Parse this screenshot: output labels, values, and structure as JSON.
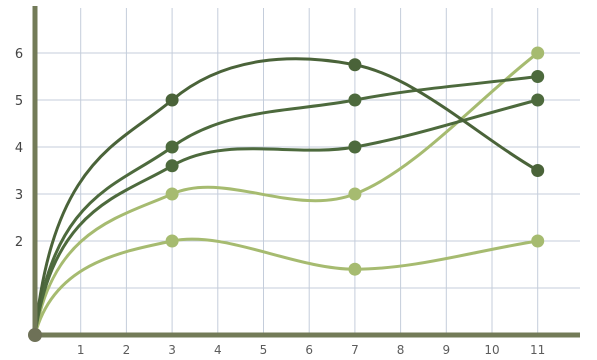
{
  "chart_data": {
    "type": "line",
    "title": "",
    "xlabel": "",
    "ylabel": "",
    "x": [
      0,
      3,
      7,
      11
    ],
    "xlim": [
      0,
      11.8
    ],
    "ylim": [
      0,
      6.9
    ],
    "xticks": [
      1,
      2,
      3,
      4,
      5,
      6,
      7,
      8,
      9,
      10,
      11
    ],
    "yticks": [
      2,
      3,
      4,
      5,
      6
    ],
    "grid": true,
    "legend": "none",
    "series": [
      {
        "values": [
          0,
          5.0,
          5.75,
          3.5
        ],
        "color": "#4a6339"
      },
      {
        "values": [
          0,
          4.0,
          5.0,
          5.5
        ],
        "color": "#4d6a3d"
      },
      {
        "values": [
          0,
          3.6,
          4.0,
          5.0
        ],
        "color": "#4d6a3d"
      },
      {
        "values": [
          0,
          3.0,
          3.0,
          6.0
        ],
        "color": "#a6bb70"
      },
      {
        "values": [
          0,
          2.0,
          1.4,
          2.0
        ],
        "color": "#a6bb70"
      }
    ],
    "colors": {
      "axis": "#737b58",
      "grid": "#c4cddb",
      "origin": "#6e7157"
    }
  }
}
